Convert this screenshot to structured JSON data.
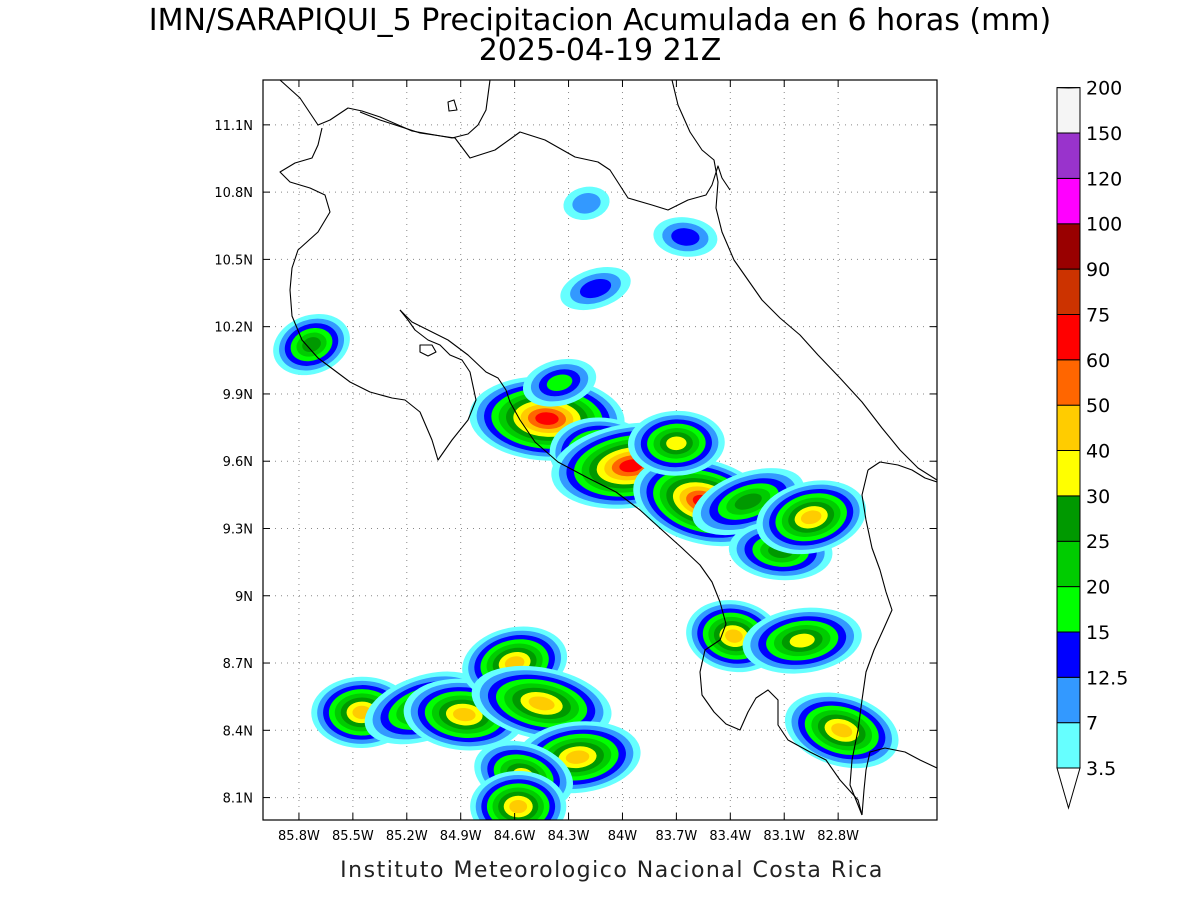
{
  "title": {
    "line1": "IMN/SARAPIQUI_5 Precipitacion Acumulada en 6 horas (mm)",
    "line2": "2025-04-19 21Z"
  },
  "footer": "Instituto Meteorologico Nacional Costa Rica",
  "map": {
    "lon_range": [
      -86.0,
      -82.25
    ],
    "lat_range": [
      8.0,
      11.3
    ],
    "lat_ticks": [
      {
        "value": 11.1,
        "label": "11.1N"
      },
      {
        "value": 10.8,
        "label": "10.8N"
      },
      {
        "value": 10.5,
        "label": "10.5N"
      },
      {
        "value": 10.2,
        "label": "10.2N"
      },
      {
        "value": 9.9,
        "label": "9.9N"
      },
      {
        "value": 9.6,
        "label": "9.6N"
      },
      {
        "value": 9.3,
        "label": "9.3N"
      },
      {
        "value": 9.0,
        "label": "9N"
      },
      {
        "value": 8.7,
        "label": "8.7N"
      },
      {
        "value": 8.4,
        "label": "8.4N"
      },
      {
        "value": 8.1,
        "label": "8.1N"
      }
    ],
    "lon_ticks": [
      {
        "value": -85.8,
        "label": "85.8W"
      },
      {
        "value": -85.5,
        "label": "85.5W"
      },
      {
        "value": -85.2,
        "label": "85.2W"
      },
      {
        "value": -84.9,
        "label": "84.9W"
      },
      {
        "value": -84.6,
        "label": "84.6W"
      },
      {
        "value": -84.3,
        "label": "84.3W"
      },
      {
        "value": -84.0,
        "label": "84W"
      },
      {
        "value": -83.7,
        "label": "83.7W"
      },
      {
        "value": -83.4,
        "label": "83.4W"
      },
      {
        "value": -83.1,
        "label": "83.1W"
      },
      {
        "value": -82.8,
        "label": "82.8W"
      }
    ],
    "grid": true
  },
  "colorbar": {
    "unit": "mm",
    "levels": [
      "3.5",
      "7",
      "12.5",
      "15",
      "20",
      "25",
      "30",
      "40",
      "50",
      "60",
      "75",
      "90",
      "100",
      "120",
      "150",
      "200"
    ],
    "colors": [
      "#66ffff",
      "#3399ff",
      "#0000ff",
      "#00ff00",
      "#00cc00",
      "#009900",
      "#ffff00",
      "#ffcc00",
      "#ff6600",
      "#ff0000",
      "#cc3300",
      "#990000",
      "#ff00ff",
      "#9933cc",
      "#f5f5f5",
      "#aaaaaa"
    ]
  },
  "precip_cells": [
    {
      "lon": -85.73,
      "lat": 10.12,
      "max_mm": 25
    },
    {
      "lon": -84.42,
      "lat": 9.79,
      "max_mm": 60
    },
    {
      "lon": -84.35,
      "lat": 9.95,
      "max_mm": 15
    },
    {
      "lon": -84.1,
      "lat": 9.62,
      "max_mm": 50
    },
    {
      "lon": -83.95,
      "lat": 9.58,
      "max_mm": 60
    },
    {
      "lon": -83.55,
      "lat": 9.42,
      "max_mm": 60
    },
    {
      "lon": -83.7,
      "lat": 9.68,
      "max_mm": 30
    },
    {
      "lon": -83.3,
      "lat": 9.42,
      "max_mm": 25
    },
    {
      "lon": -83.12,
      "lat": 9.2,
      "max_mm": 25
    },
    {
      "lon": -82.95,
      "lat": 9.35,
      "max_mm": 40
    },
    {
      "lon": -83.38,
      "lat": 8.82,
      "max_mm": 40
    },
    {
      "lon": -83.0,
      "lat": 8.8,
      "max_mm": 30
    },
    {
      "lon": -82.78,
      "lat": 8.4,
      "max_mm": 40
    },
    {
      "lon": -85.45,
      "lat": 8.48,
      "max_mm": 40
    },
    {
      "lon": -85.1,
      "lat": 8.5,
      "max_mm": 30
    },
    {
      "lon": -84.88,
      "lat": 8.47,
      "max_mm": 40
    },
    {
      "lon": -84.6,
      "lat": 8.7,
      "max_mm": 40
    },
    {
      "lon": -84.45,
      "lat": 8.52,
      "max_mm": 40
    },
    {
      "lon": -84.25,
      "lat": 8.28,
      "max_mm": 40
    },
    {
      "lon": -84.55,
      "lat": 8.2,
      "max_mm": 30
    },
    {
      "lon": -84.58,
      "lat": 8.06,
      "max_mm": 40
    },
    {
      "lon": -84.15,
      "lat": 10.37,
      "max_mm": 12.5
    },
    {
      "lon": -83.65,
      "lat": 10.6,
      "max_mm": 12.5
    },
    {
      "lon": -84.2,
      "lat": 10.75,
      "max_mm": 7
    }
  ]
}
